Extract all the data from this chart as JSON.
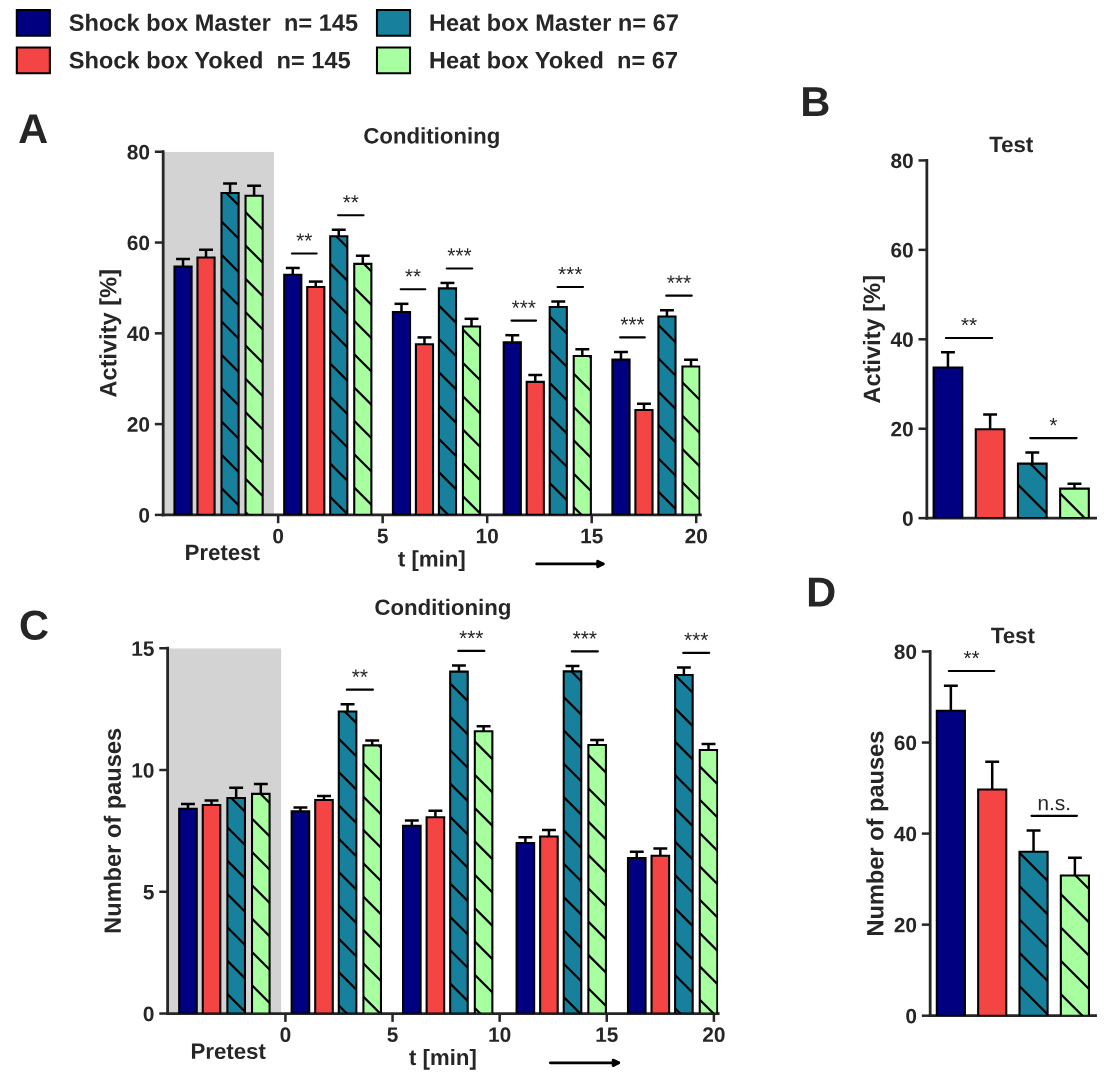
{
  "chart_data": [
    {
      "type": "bar",
      "title": "Conditioning",
      "xlabel": "t [min]",
      "ylabel": "Activity [%]",
      "xlim": [
        -5.5,
        20.2
      ],
      "xticks": [
        0,
        5,
        10,
        15,
        20
      ],
      "ylim": [
        0,
        80
      ],
      "yticks": [
        0,
        20,
        40,
        60,
        80
      ],
      "legend": "top",
      "grid": false,
      "bands": [
        {
          "axis": "x",
          "from": -5.5,
          "to": -0.2,
          "color": "#d3d3d3"
        }
      ],
      "series": [
        {
          "name": "Shock box Master  n= 145",
          "color": "#000080",
          "x": [
            -4.55,
            0.7,
            5.9,
            11.2,
            16.4
          ],
          "values": [
            54.7,
            52.9,
            44.7,
            38.0,
            34.2
          ],
          "errors": [
            1.7,
            1.5,
            1.8,
            1.6,
            1.7
          ]
        },
        {
          "name": "Shock box Yoked  n= 145",
          "color": "#f44444",
          "x": [
            -3.45,
            1.8,
            7.0,
            12.3,
            17.5
          ],
          "values": [
            56.7,
            50.2,
            37.6,
            29.3,
            23.1
          ],
          "errors": [
            1.7,
            1.2,
            1.5,
            1.5,
            1.4
          ]
        },
        {
          "name": "Heat box Master n= 67",
          "color": "#17809c",
          "x": [
            -2.3,
            2.9,
            8.1,
            13.4,
            18.6
          ],
          "values": [
            70.9,
            61.4,
            49.9,
            45.8,
            43.7
          ],
          "errors": [
            2.1,
            1.4,
            1.2,
            1.2,
            1.4
          ]
        },
        {
          "name": "Heat box Yoked  n= 67",
          "color": "#a8ffa0",
          "x": [
            -1.15,
            4.05,
            9.25,
            14.55,
            19.75
          ],
          "values": [
            70.3,
            55.3,
            41.5,
            35.0,
            32.7
          ],
          "errors": [
            2.2,
            1.8,
            1.7,
            1.5,
            1.5
          ]
        }
      ],
      "annotations": [
        "A",
        "Pretest",
        "**",
        "**",
        "**",
        "***",
        "***",
        "***",
        "***",
        "***"
      ]
    },
    {
      "type": "bar",
      "title": "Test",
      "ylabel": "Activity [%]",
      "ylim": [
        0,
        80
      ],
      "yticks": [
        0,
        20,
        40,
        60,
        80
      ],
      "grid": false,
      "categories": [
        null,
        null,
        null,
        null
      ],
      "values": [
        33.7,
        19.9,
        12.2,
        6.6
      ],
      "errors": [
        3.4,
        3.3,
        2.5,
        1.1
      ],
      "colors": [
        "#000080",
        "#f44444",
        "#17809c",
        "#a8ffa0"
      ],
      "annotations": [
        "B",
        "**",
        "*"
      ]
    },
    {
      "type": "bar",
      "title": "Conditioning",
      "xlabel": "t [min]",
      "ylabel": "Number of pauses",
      "xlim": [
        -5.5,
        20.2
      ],
      "xticks": [
        0,
        5,
        10,
        15,
        20
      ],
      "ylim": [
        0,
        15
      ],
      "yticks": [
        0,
        5,
        10,
        15
      ],
      "grid": false,
      "bands": [
        {
          "axis": "x",
          "from": -5.5,
          "to": -0.2,
          "color": "#d3d3d3"
        }
      ],
      "series": [
        {
          "color": "#000080",
          "x": [
            -4.55,
            0.7,
            5.9,
            11.2,
            16.4
          ],
          "values": [
            8.41,
            8.3,
            7.71,
            7.0,
            6.39
          ],
          "errors": [
            0.19,
            0.16,
            0.22,
            0.24,
            0.25
          ]
        },
        {
          "color": "#f44444",
          "x": [
            -3.45,
            1.8,
            7.0,
            12.3,
            17.5
          ],
          "values": [
            8.56,
            8.77,
            8.06,
            7.27,
            6.48
          ],
          "errors": [
            0.19,
            0.16,
            0.27,
            0.27,
            0.3
          ]
        },
        {
          "color": "#17809c",
          "x": [
            -2.3,
            2.9,
            8.1,
            13.4,
            18.6
          ],
          "values": [
            8.85,
            12.4,
            14.04,
            14.05,
            13.9
          ],
          "errors": [
            0.42,
            0.3,
            0.25,
            0.22,
            0.31
          ]
        },
        {
          "color": "#a8ffa0",
          "x": [
            -1.15,
            4.05,
            9.25,
            14.55,
            19.75
          ],
          "values": [
            9.02,
            11.01,
            11.59,
            11.03,
            10.82
          ],
          "errors": [
            0.41,
            0.2,
            0.21,
            0.2,
            0.25
          ]
        }
      ],
      "annotations": [
        "C",
        "Pretest",
        "**",
        "***",
        "***",
        "***"
      ]
    },
    {
      "type": "bar",
      "title": "Test",
      "ylabel": "Number of pauses",
      "ylim": [
        0,
        80
      ],
      "yticks": [
        0,
        20,
        40,
        60,
        80
      ],
      "grid": false,
      "categories": [
        null,
        null,
        null,
        null
      ],
      "values": [
        67.0,
        49.7,
        36.0,
        30.8
      ],
      "errors": [
        5.5,
        6.1,
        4.7,
        3.9
      ],
      "colors": [
        "#000080",
        "#f44444",
        "#17809c",
        "#a8ffa0"
      ],
      "annotations": [
        "D",
        "**",
        "n.s."
      ]
    }
  ]
}
